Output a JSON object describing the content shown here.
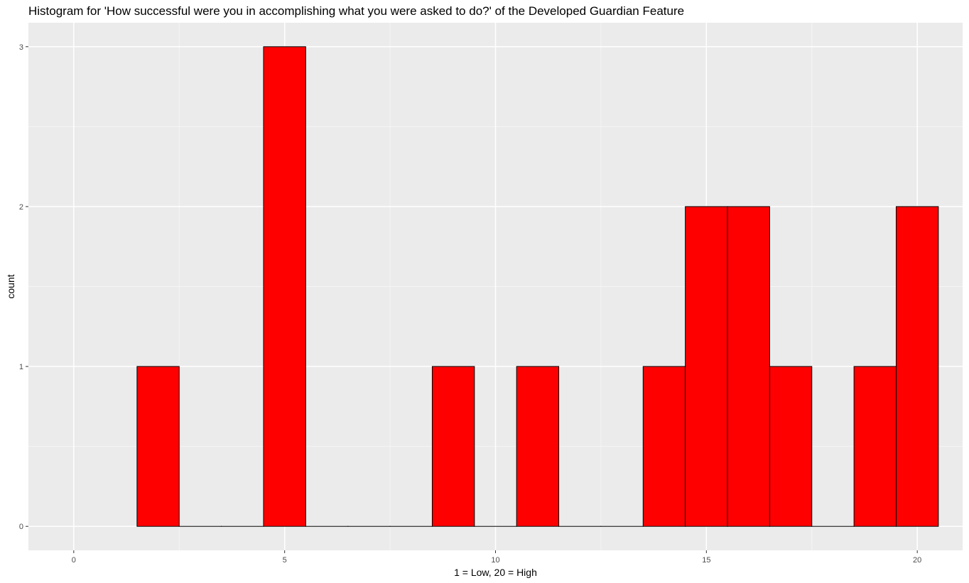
{
  "chart_data": {
    "type": "bar",
    "title": "Histogram for 'How successful were you in accomplishing what you were asked to do?' of the Developed Guardian Feature",
    "xlabel": "1 = Low, 20 = High",
    "ylabel": "count",
    "bin_width": 1,
    "bins": [
      {
        "center": 2,
        "count": 1
      },
      {
        "center": 3,
        "count": 0
      },
      {
        "center": 4,
        "count": 0
      },
      {
        "center": 5,
        "count": 3
      },
      {
        "center": 6,
        "count": 0
      },
      {
        "center": 7,
        "count": 0
      },
      {
        "center": 8,
        "count": 0
      },
      {
        "center": 9,
        "count": 1
      },
      {
        "center": 10,
        "count": 0
      },
      {
        "center": 11,
        "count": 1
      },
      {
        "center": 12,
        "count": 0
      },
      {
        "center": 13,
        "count": 0
      },
      {
        "center": 14,
        "count": 1
      },
      {
        "center": 15,
        "count": 2
      },
      {
        "center": 16,
        "count": 2
      },
      {
        "center": 17,
        "count": 1
      },
      {
        "center": 18,
        "count": 0
      },
      {
        "center": 19,
        "count": 1
      },
      {
        "center": 20,
        "count": 2
      }
    ],
    "x_ticks": [
      0,
      5,
      10,
      15,
      20
    ],
    "y_ticks": [
      0,
      1,
      2,
      3
    ],
    "xlim": [
      -1.075,
      21.075
    ],
    "ylim": [
      -0.15,
      3.15
    ],
    "grid": true,
    "colors": {
      "bar_fill": "#ff0000",
      "bar_outline": "#000000",
      "panel_background": "#ebebeb",
      "grid_major": "#ffffff",
      "grid_minor": "#f5f5f5"
    }
  }
}
